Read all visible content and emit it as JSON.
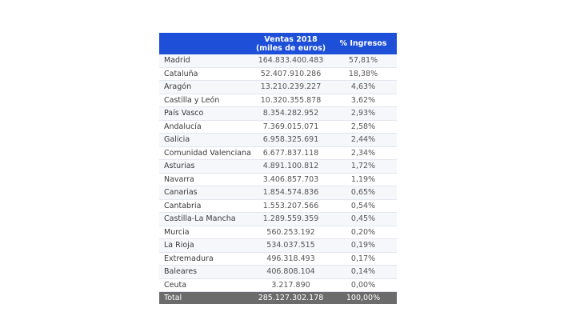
{
  "table": {
    "headers": {
      "region": "",
      "sales_line1": "Ventas 2018",
      "sales_line2": "(miles de euros)",
      "percent": "% Ingresos"
    },
    "rows": [
      {
        "region": "Madrid",
        "sales": "164.833.400.483",
        "percent": "57,81%"
      },
      {
        "region": "Cataluña",
        "sales": "52.407.910.286",
        "percent": "18,38%"
      },
      {
        "region": "Aragón",
        "sales": "13.210.239.227",
        "percent": "4,63%"
      },
      {
        "region": "Castilla y León",
        "sales": "10.320.355.878",
        "percent": "3,62%"
      },
      {
        "region": "País Vasco",
        "sales": "8.354.282.952",
        "percent": "2,93%"
      },
      {
        "region": "Andalucía",
        "sales": "7.369.015.071",
        "percent": "2,58%"
      },
      {
        "region": "Galicia",
        "sales": "6.958.325.691",
        "percent": "2,44%"
      },
      {
        "region": "Comunidad Valenciana",
        "sales": "6.677.837.118",
        "percent": "2,34%"
      },
      {
        "region": "Asturias",
        "sales": "4.891.100.812",
        "percent": "1,72%"
      },
      {
        "region": "Navarra",
        "sales": "3.406.857.703",
        "percent": "1,19%"
      },
      {
        "region": "Canarias",
        "sales": "1.854.574.836",
        "percent": "0,65%"
      },
      {
        "region": "Cantabria",
        "sales": "1.553.207.566",
        "percent": "0,54%"
      },
      {
        "region": "Castilla-La Mancha",
        "sales": "1.289.559.359",
        "percent": "0,45%"
      },
      {
        "region": "Murcia",
        "sales": "560.253.192",
        "percent": "0,20%"
      },
      {
        "region": "La Rioja",
        "sales": "534.037.515",
        "percent": "0,19%"
      },
      {
        "region": "Extremadura",
        "sales": "496.318.493",
        "percent": "0,17%"
      },
      {
        "region": "Baleares",
        "sales": "406.808.104",
        "percent": "0,14%"
      },
      {
        "region": "Ceuta",
        "sales": "3.217.890",
        "percent": "0,00%"
      }
    ],
    "total": {
      "region": "Total",
      "sales": "285.127.302.178",
      "percent": "100,00%"
    }
  },
  "colors": {
    "header_bg": "#1d4fd8",
    "total_bg": "#6b6b6b",
    "row_alt_bg": "#f5f7fb"
  }
}
